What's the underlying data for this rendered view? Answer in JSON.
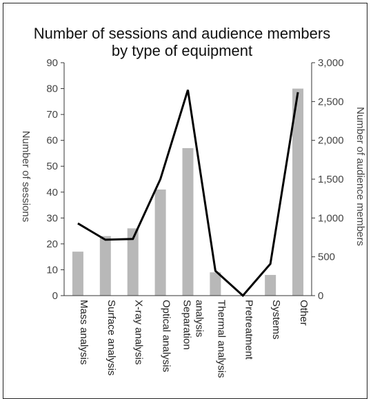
{
  "chart_data": {
    "type": "bar",
    "title_lines": [
      "Number of sessions and audience members",
      "by type of equipment"
    ],
    "categories": [
      [
        "Mass analysis"
      ],
      [
        "Surface analysis"
      ],
      [
        "X-ray analysis"
      ],
      [
        "Optical analysis"
      ],
      [
        "Separation",
        "analysis"
      ],
      [
        "Thermal analysis"
      ],
      [
        "Pretreatment"
      ],
      [
        "Systems"
      ],
      [
        "Other"
      ]
    ],
    "series": [
      {
        "name": "Number of sessions",
        "type": "bar",
        "axis": "left",
        "color": "#b8b8b8",
        "values": [
          17,
          23,
          26,
          41,
          57,
          9,
          0,
          8,
          80
        ]
      },
      {
        "name": "Number of audience members",
        "type": "line",
        "axis": "right",
        "color": "#000000",
        "values": [
          930,
          720,
          730,
          1500,
          2650,
          320,
          0,
          410,
          2620
        ]
      }
    ],
    "ylabel_left": "Number of sessions",
    "ylabel_right": "Number of audience members",
    "ylim_left": [
      0,
      90
    ],
    "yticks_left": [
      0,
      10,
      20,
      30,
      40,
      50,
      60,
      70,
      80,
      90
    ],
    "ylim_right": [
      0,
      3000
    ],
    "yticks_right": [
      0,
      500,
      1000,
      1500,
      2000,
      2500,
      3000
    ],
    "yticklabels_right": [
      "0",
      "500",
      "1,000",
      "1,500",
      "2,000",
      "2,500",
      "3,000"
    ],
    "grid": false,
    "legend": "none"
  }
}
